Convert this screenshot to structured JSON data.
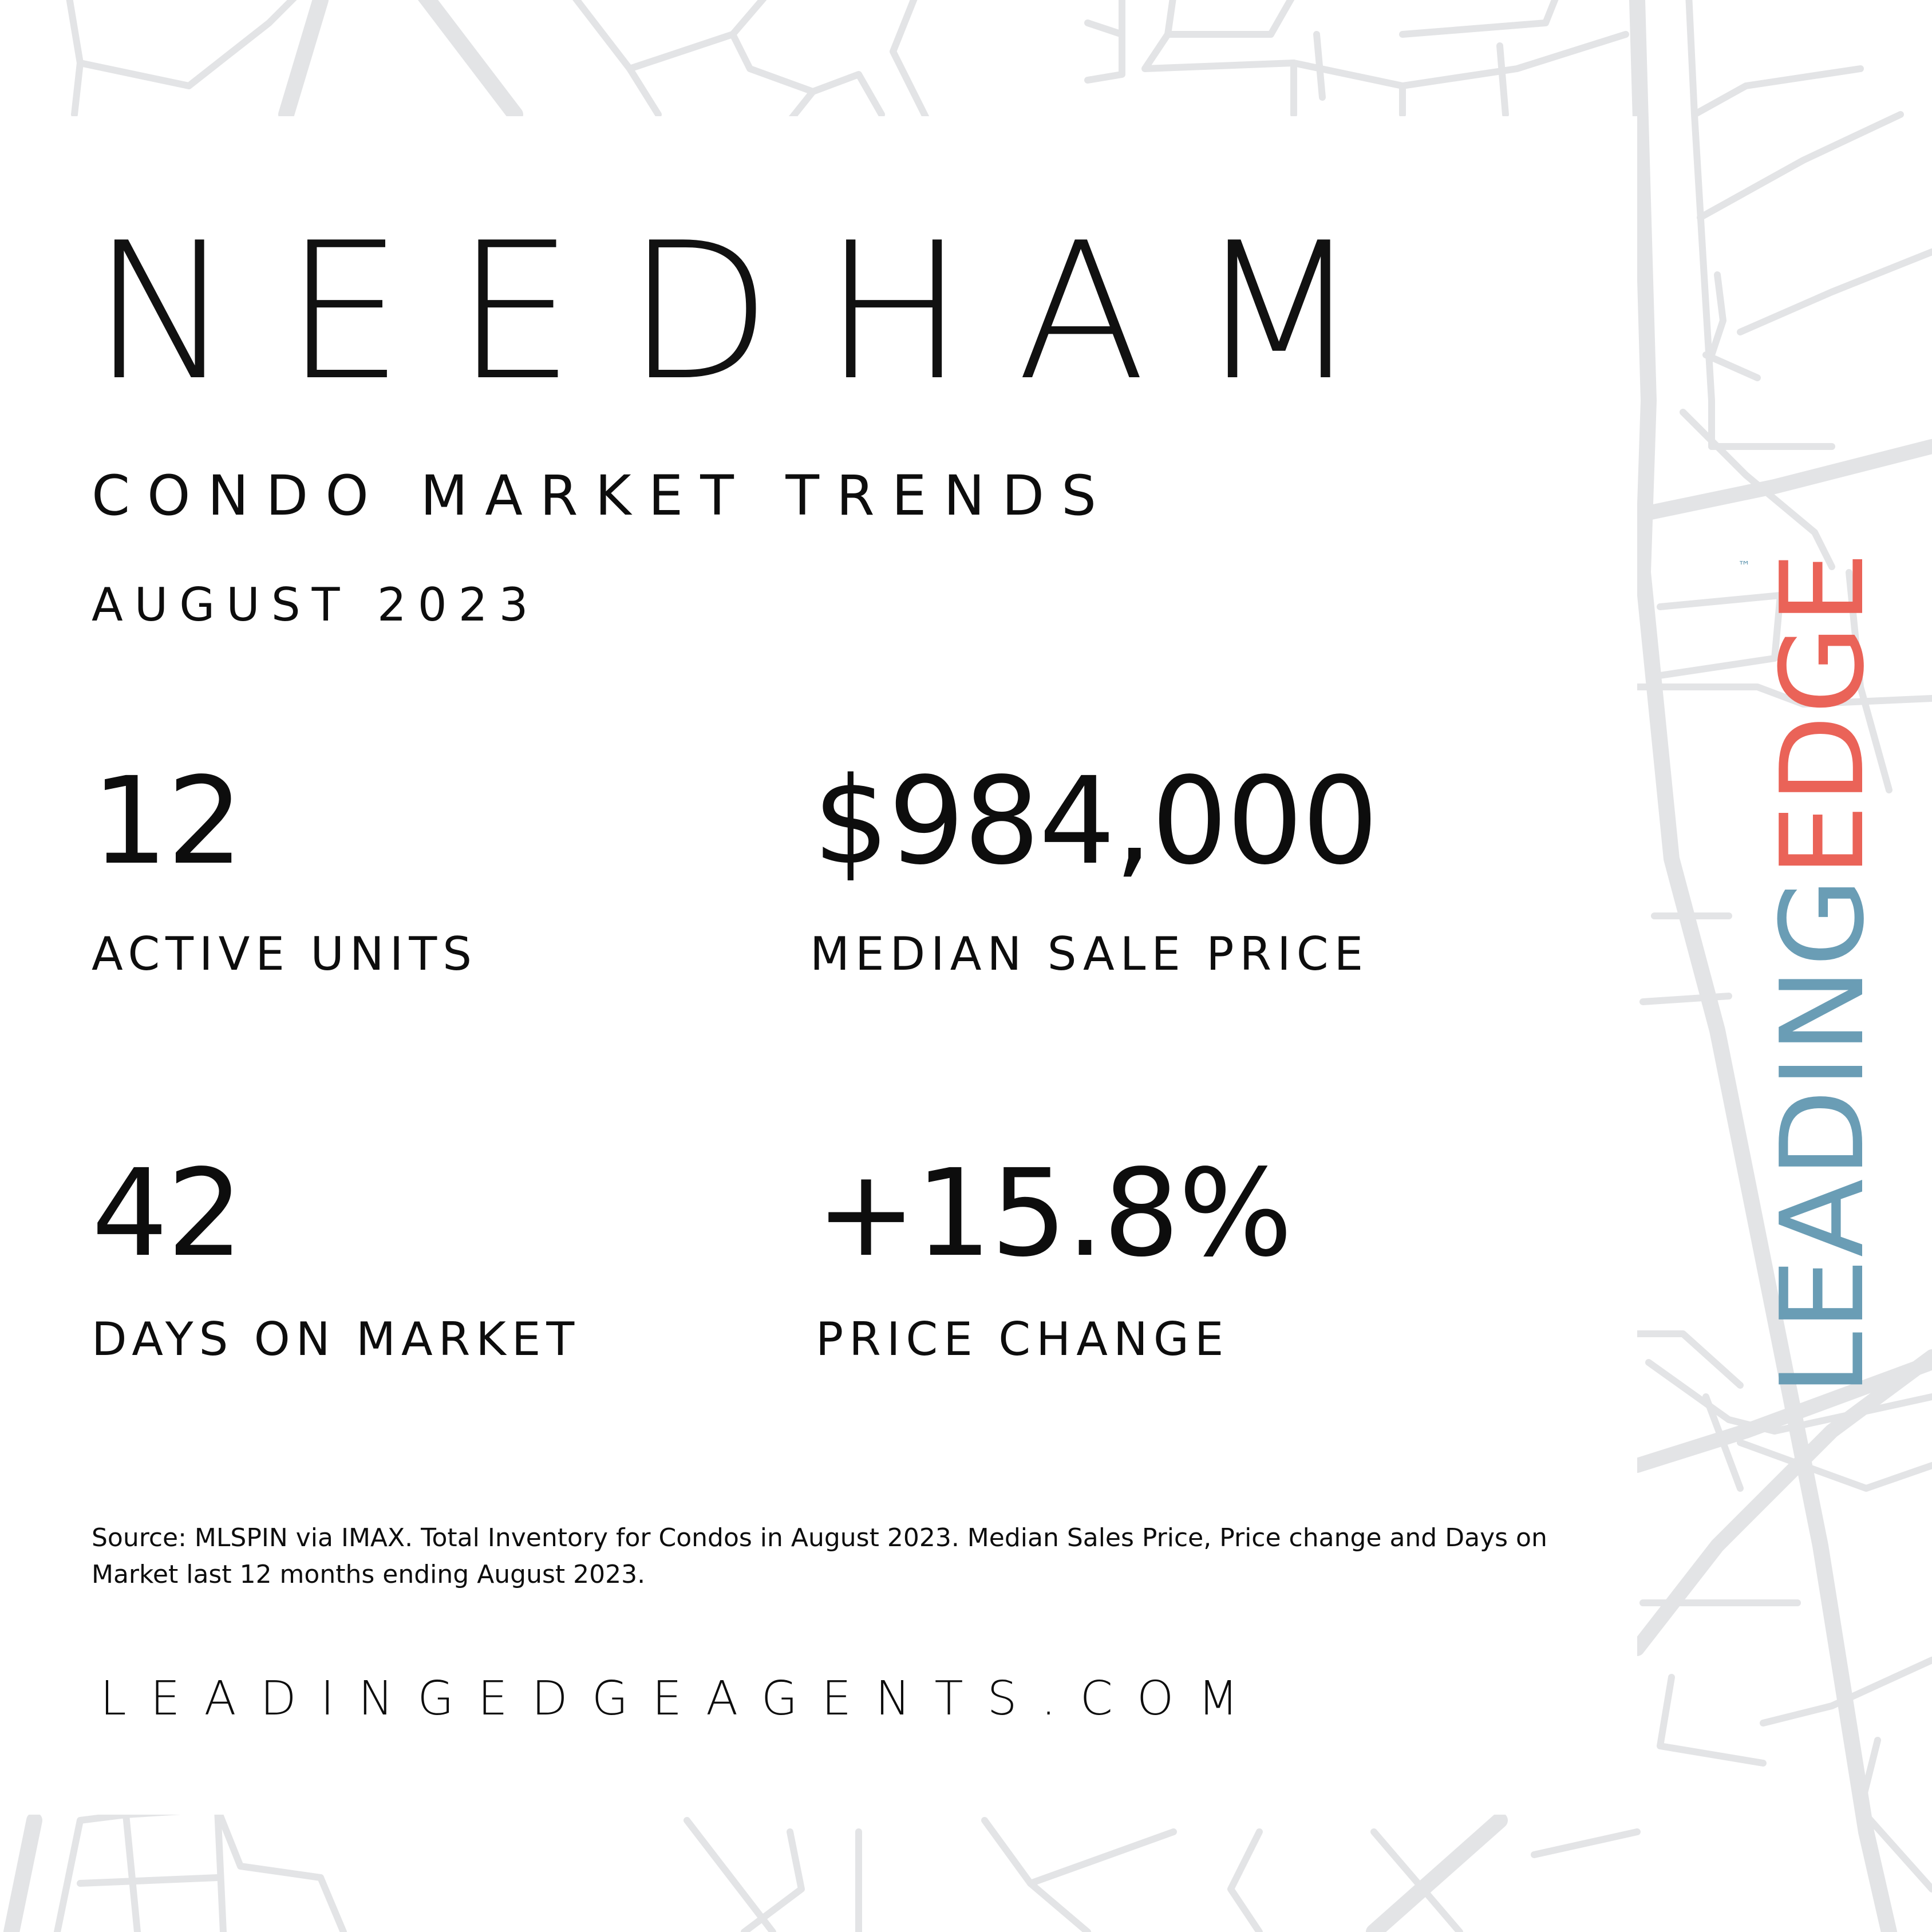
{
  "title": "NEEDHAM",
  "subtitle": "CONDO MARKET TRENDS",
  "period": "AUGUST 2023",
  "stats": [
    {
      "value": "12",
      "label": "ACTIVE UNITS"
    },
    {
      "value": "$984,000",
      "label": "MEDIAN SALE PRICE"
    },
    {
      "value": "42",
      "label": "DAYS ON MARKET"
    },
    {
      "value": "+15.8%",
      "label": "PRICE CHANGE"
    }
  ],
  "source_note": "Source: MLSPIN via IMAX. Total Inventory for Condos in August 2023. Median Sales Price, Price change and Days on Market last 12 months ending August 2023.",
  "website": "LEADINGEDGEAGENTS.COM",
  "logo": {
    "part1": "LEADING",
    "part2": "EDGE",
    "trademark": "™"
  },
  "colors": {
    "leading": "#6a9db5",
    "edge": "#ea6358",
    "map_lines": "#e5e6e8"
  }
}
